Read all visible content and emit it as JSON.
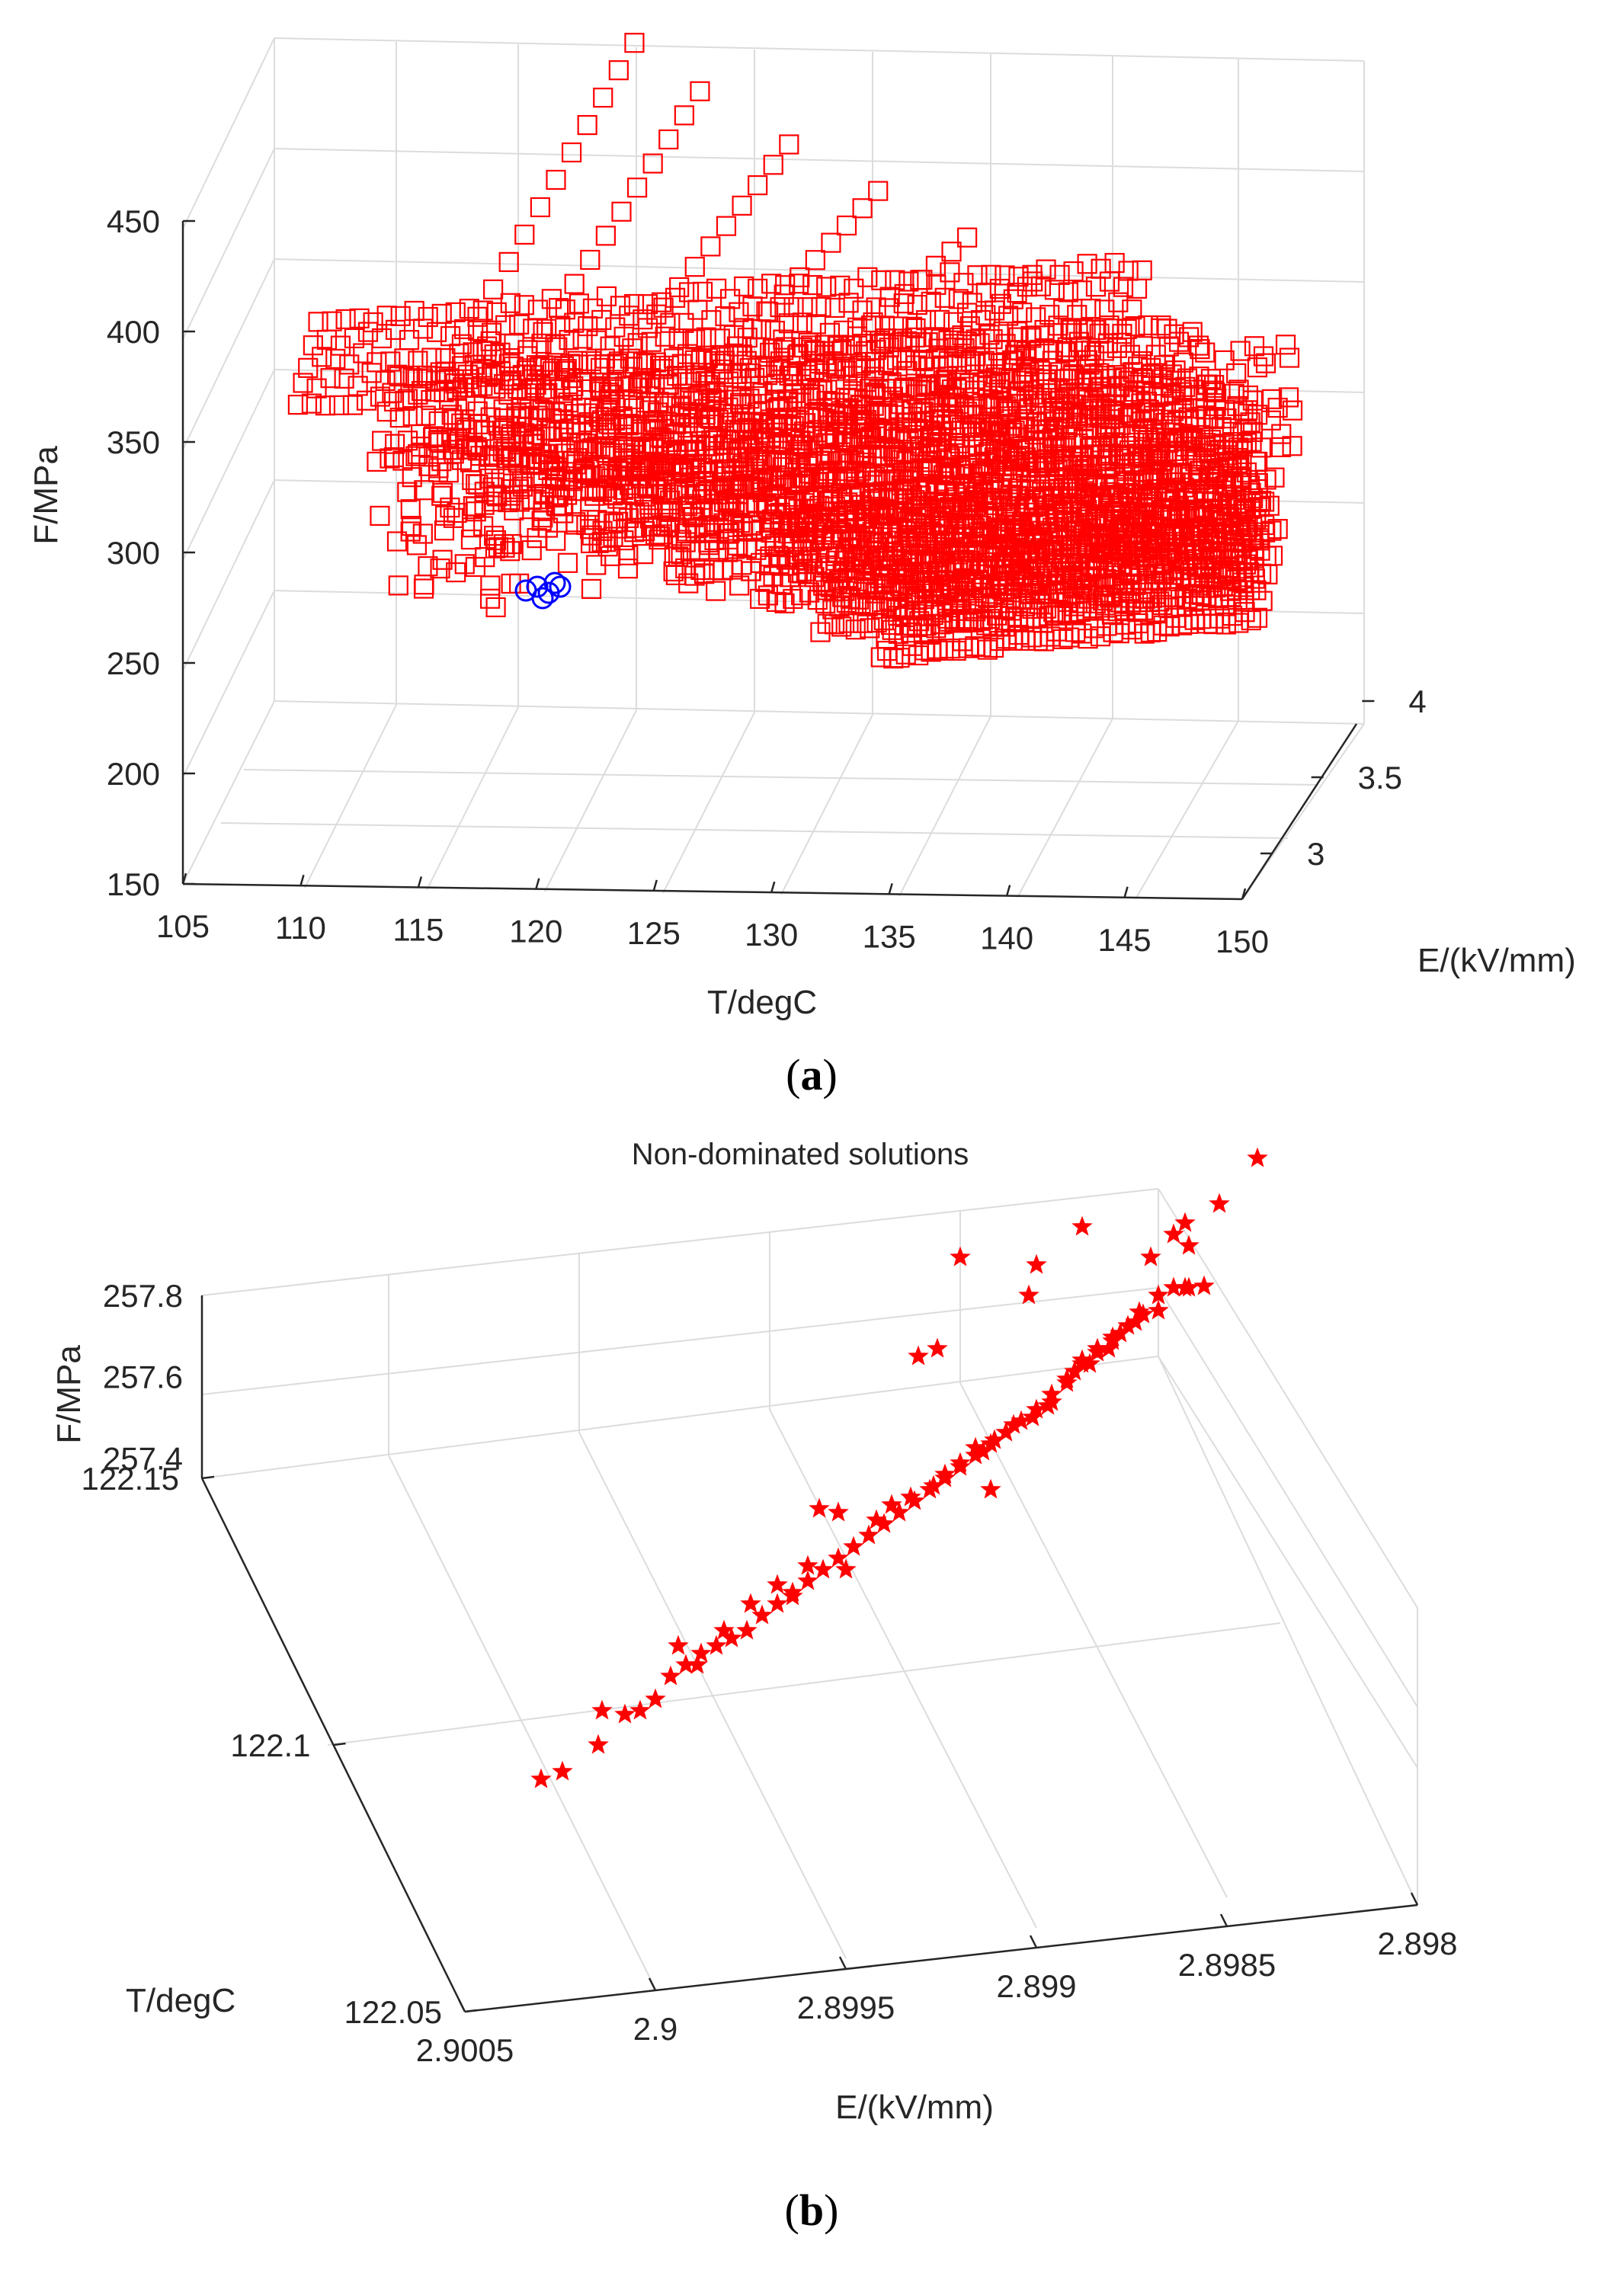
{
  "chart_data": [
    {
      "type": "scatter",
      "panel": "(a)",
      "caption_paren_open": "(",
      "caption_letter": "a",
      "caption_paren_close": ")",
      "title": "",
      "xlabel": "T/degC",
      "ylabel": "E/(kV/mm)",
      "zlabel": "F/MPa",
      "xlim": [
        105,
        150
      ],
      "ylim": [
        2.7,
        4.2
      ],
      "zlim": [
        150,
        450
      ],
      "xticks": [
        "105",
        "110",
        "115",
        "120",
        "125",
        "130",
        "135",
        "140",
        "145",
        "150"
      ],
      "yticks": [
        "3",
        "3.5",
        "4"
      ],
      "zticks": [
        "150",
        "200",
        "250",
        "300",
        "350",
        "400",
        "450"
      ],
      "grid": true,
      "series": [
        {
          "marker": "square",
          "color": "#ff0000",
          "ridges": [
            {
              "T_start": 106,
              "T_end": 141,
              "E": 3.7,
              "F_start": 305,
              "F_end": 336
            },
            {
              "T_start": 110,
              "T_end": 143,
              "E": 3.55,
              "F_start": 291,
              "F_end": 318
            },
            {
              "T_start": 115,
              "T_end": 145,
              "E": 3.45,
              "F_start": 280,
              "F_end": 305
            },
            {
              "T_start": 120,
              "T_end": 147,
              "E": 3.35,
              "F_start": 271,
              "F_end": 295
            },
            {
              "T_start": 124,
              "T_end": 148,
              "E": 3.25,
              "F_start": 263,
              "F_end": 286
            },
            {
              "T_start": 128,
              "T_end": 149,
              "E": 3.15,
              "F_start": 257,
              "F_end": 278
            },
            {
              "T_start": 131,
              "T_end": 149,
              "E": 3.05,
              "F_start": 252,
              "F_end": 272
            },
            {
              "T_start": 134,
              "T_end": 150,
              "E": 2.95,
              "F_start": 248,
              "F_end": 268
            }
          ],
          "peaks": [
            {
              "T": 119,
              "E": 3.9,
              "F": 450
            },
            {
              "T": 122,
              "E": 3.85,
              "F": 432
            },
            {
              "T": 126,
              "E": 3.8,
              "F": 412
            },
            {
              "T": 130,
              "E": 3.75,
              "F": 395
            },
            {
              "T": 134,
              "E": 3.7,
              "F": 378
            },
            {
              "T": 137,
              "E": 3.65,
              "F": 362
            }
          ]
        },
        {
          "marker": "circle",
          "color": "#0000ff",
          "points": [
            {
              "T": 122.07,
              "E": 2.9003,
              "F": 257.45
            },
            {
              "T": 122.09,
              "E": 2.9,
              "F": 257.5
            },
            {
              "T": 122.1,
              "E": 2.8997,
              "F": 257.55
            },
            {
              "T": 122.12,
              "E": 2.8994,
              "F": 257.6
            },
            {
              "T": 122.13,
              "E": 2.8991,
              "F": 257.65
            },
            {
              "T": 122.14,
              "E": 2.8988,
              "F": 257.72
            }
          ]
        }
      ]
    },
    {
      "type": "scatter",
      "panel": "(b)",
      "caption_paren_open": "(",
      "caption_letter": "b",
      "caption_paren_close": ")",
      "title": "Non-dominated solutions",
      "xlabel": "E/(kV/mm)",
      "ylabel": "T/degC",
      "zlabel": "F/MPa",
      "xlim": [
        2.9005,
        2.898
      ],
      "ylim": [
        122.05,
        122.15
      ],
      "zlim": [
        257.35,
        257.8
      ],
      "xticks": [
        "2.9005",
        "2.9",
        "2.8995",
        "2.899",
        "2.8985",
        "2.898"
      ],
      "yticks": [
        "122.05",
        "122.1",
        "122.15"
      ],
      "zticks": [
        "257.4",
        "257.6",
        "257.8"
      ],
      "grid": true,
      "series": [
        {
          "marker": "star",
          "color": "#ff0000",
          "points": [
            {
              "E": 2.9002,
              "T": 122.09,
              "F": 257.36
            },
            {
              "E": 2.90015,
              "T": 122.085,
              "F": 257.38
            },
            {
              "E": 2.9001,
              "T": 122.09,
              "F": 257.4
            },
            {
              "E": 2.9,
              "T": 122.095,
              "F": 257.42
            },
            {
              "E": 2.89995,
              "T": 122.1,
              "F": 257.44
            },
            {
              "E": 2.8999,
              "T": 122.1,
              "F": 257.45
            },
            {
              "E": 2.8998,
              "T": 122.11,
              "F": 257.47
            },
            {
              "E": 2.89975,
              "T": 122.11,
              "F": 257.48
            },
            {
              "E": 2.8997,
              "T": 122.115,
              "F": 257.49
            },
            {
              "E": 2.8996,
              "T": 122.12,
              "F": 257.5
            },
            {
              "E": 2.8995,
              "T": 122.12,
              "F": 257.52
            },
            {
              "E": 2.8994,
              "T": 122.125,
              "F": 257.53
            },
            {
              "E": 2.8993,
              "T": 122.13,
              "F": 257.55
            },
            {
              "E": 2.8992,
              "T": 122.13,
              "F": 257.56
            },
            {
              "E": 2.8991,
              "T": 122.135,
              "F": 257.58
            },
            {
              "E": 2.899,
              "T": 122.135,
              "F": 257.6
            },
            {
              "E": 2.8989,
              "T": 122.14,
              "F": 257.62
            },
            {
              "E": 2.8988,
              "T": 122.14,
              "F": 257.65
            },
            {
              "E": 2.8986,
              "T": 122.145,
              "F": 257.68
            },
            {
              "E": 2.8984,
              "T": 122.145,
              "F": 257.72
            },
            {
              "E": 2.8982,
              "T": 122.15,
              "F": 257.78
            }
          ]
        }
      ]
    }
  ]
}
